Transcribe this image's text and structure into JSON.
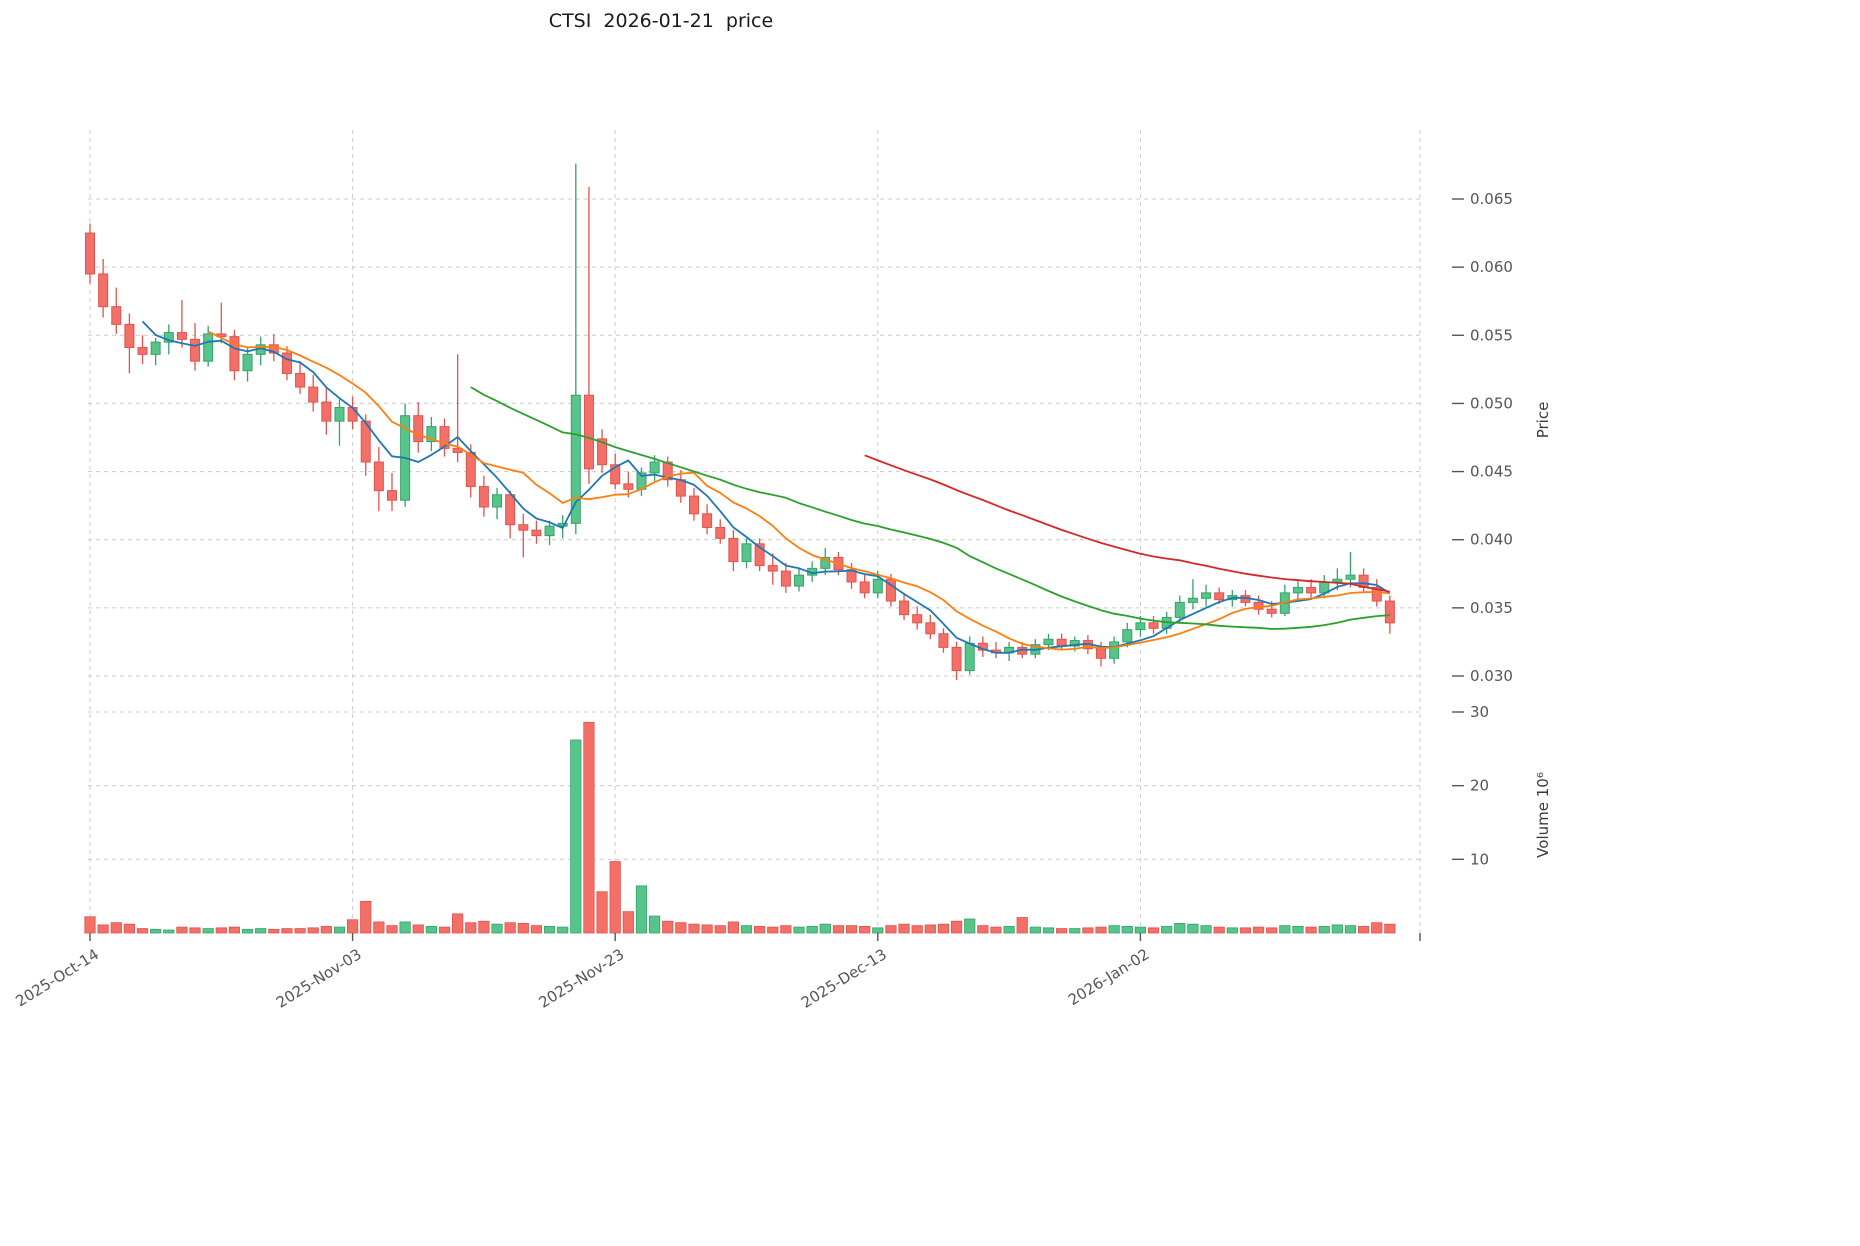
{
  "chart_data": {
    "type": "candlestick+volume",
    "title": "CTSI  2026-01-21  price",
    "symbol": "CTSI",
    "price_axis_label": "Price",
    "volume_axis_label": "Volume  10⁶",
    "price_ticks": [
      0.03,
      0.035,
      0.04,
      0.045,
      0.05,
      0.055,
      0.06,
      0.065
    ],
    "volume_ticks": [
      10,
      20,
      30
    ],
    "x_ticks": [
      {
        "index": 0,
        "label": "2025-Oct-14"
      },
      {
        "index": 20,
        "label": "2025-Nov-03"
      },
      {
        "index": 40,
        "label": "2025-Nov-23"
      },
      {
        "index": 60,
        "label": "2025-Dec-13"
      },
      {
        "index": 80,
        "label": "2026-Jan-02"
      }
    ],
    "moving_averages": [
      {
        "window": 5,
        "color": "#1f77b4"
      },
      {
        "window": 10,
        "color": "#ff7f0e"
      },
      {
        "window": 30,
        "color": "#2ca02c"
      },
      {
        "window": 60,
        "color": "#d62728"
      }
    ],
    "colors": {
      "up": "#57c48c",
      "up_edge": "#35a369",
      "down": "#f37069",
      "down_edge": "#e0534e",
      "grid": "#cccccc",
      "tick": "#555555",
      "title": "#1a1a1a"
    },
    "columns": [
      "date",
      "open",
      "high",
      "low",
      "close",
      "volume_millions"
    ],
    "candles": [
      [
        "2025-10-14",
        0.0625,
        0.0632,
        0.0588,
        0.0595,
        2.2
      ],
      [
        "2025-10-15",
        0.0595,
        0.0606,
        0.0563,
        0.0571,
        1.1
      ],
      [
        "2025-10-16",
        0.0571,
        0.0585,
        0.0551,
        0.0558,
        1.4
      ],
      [
        "2025-10-17",
        0.0558,
        0.0566,
        0.0522,
        0.0541,
        1.2
      ],
      [
        "2025-10-18",
        0.0541,
        0.055,
        0.0529,
        0.0536,
        0.6
      ],
      [
        "2025-10-19",
        0.0536,
        0.0548,
        0.0528,
        0.0545,
        0.5
      ],
      [
        "2025-10-20",
        0.0545,
        0.0558,
        0.0536,
        0.0552,
        0.4
      ],
      [
        "2025-10-21",
        0.0552,
        0.0576,
        0.0541,
        0.0547,
        0.8
      ],
      [
        "2025-10-22",
        0.0547,
        0.0559,
        0.0524,
        0.0531,
        0.7
      ],
      [
        "2025-10-23",
        0.0531,
        0.0557,
        0.0527,
        0.0551,
        0.6
      ],
      [
        "2025-10-24",
        0.0551,
        0.0574,
        0.0544,
        0.0549,
        0.7
      ],
      [
        "2025-10-25",
        0.0549,
        0.0554,
        0.0517,
        0.0524,
        0.8
      ],
      [
        "2025-10-26",
        0.0524,
        0.0541,
        0.0516,
        0.0536,
        0.5
      ],
      [
        "2025-10-27",
        0.0536,
        0.0549,
        0.0528,
        0.0543,
        0.6
      ],
      [
        "2025-10-28",
        0.0543,
        0.0551,
        0.0531,
        0.0537,
        0.5
      ],
      [
        "2025-10-29",
        0.0537,
        0.0542,
        0.0517,
        0.0522,
        0.6
      ],
      [
        "2025-10-30",
        0.0522,
        0.0531,
        0.0507,
        0.0512,
        0.6
      ],
      [
        "2025-10-31",
        0.0512,
        0.0521,
        0.0494,
        0.0501,
        0.7
      ],
      [
        "2025-11-01",
        0.0501,
        0.0512,
        0.0477,
        0.0487,
        0.9
      ],
      [
        "2025-11-02",
        0.0487,
        0.0503,
        0.0469,
        0.0497,
        0.8
      ],
      [
        "2025-11-03",
        0.0497,
        0.0505,
        0.0481,
        0.0487,
        1.8
      ],
      [
        "2025-11-04",
        0.0487,
        0.0492,
        0.0447,
        0.0457,
        4.3
      ],
      [
        "2025-11-05",
        0.0457,
        0.0468,
        0.0421,
        0.0436,
        1.5
      ],
      [
        "2025-11-06",
        0.0436,
        0.0449,
        0.0421,
        0.0429,
        1.0
      ],
      [
        "2025-11-07",
        0.0429,
        0.05,
        0.0424,
        0.0491,
        1.5
      ],
      [
        "2025-11-08",
        0.0491,
        0.0501,
        0.0464,
        0.0472,
        1.1
      ],
      [
        "2025-11-09",
        0.0472,
        0.049,
        0.0465,
        0.0483,
        0.9
      ],
      [
        "2025-11-10",
        0.0483,
        0.0489,
        0.0461,
        0.0467,
        0.8
      ],
      [
        "2025-11-11",
        0.0467,
        0.0536,
        0.0457,
        0.0464,
        2.6
      ],
      [
        "2025-11-12",
        0.0464,
        0.047,
        0.0431,
        0.0439,
        1.4
      ],
      [
        "2025-11-13",
        0.0439,
        0.0447,
        0.0417,
        0.0424,
        1.6
      ],
      [
        "2025-11-14",
        0.0424,
        0.0438,
        0.0415,
        0.0433,
        1.2
      ],
      [
        "2025-11-15",
        0.0433,
        0.0436,
        0.0401,
        0.0411,
        1.4
      ],
      [
        "2025-11-16",
        0.0411,
        0.0419,
        0.0387,
        0.0407,
        1.3
      ],
      [
        "2025-11-17",
        0.0407,
        0.0414,
        0.0397,
        0.0403,
        1.0
      ],
      [
        "2025-11-18",
        0.0403,
        0.0414,
        0.0396,
        0.041,
        0.9
      ],
      [
        "2025-11-19",
        0.041,
        0.0418,
        0.0401,
        0.0412,
        0.8
      ],
      [
        "2025-11-20",
        0.0412,
        0.0676,
        0.0404,
        0.0506,
        26.2
      ],
      [
        "2025-11-21",
        0.0506,
        0.0659,
        0.0441,
        0.0452,
        28.6
      ],
      [
        "2025-11-22",
        0.0474,
        0.0481,
        0.0449,
        0.0455,
        5.6
      ],
      [
        "2025-11-23",
        0.0455,
        0.0463,
        0.0437,
        0.0441,
        9.7
      ],
      [
        "2025-11-24",
        0.0441,
        0.045,
        0.0431,
        0.0437,
        2.9
      ],
      [
        "2025-11-25",
        0.0437,
        0.0453,
        0.0432,
        0.0449,
        6.4
      ],
      [
        "2025-11-26",
        0.0449,
        0.0462,
        0.0443,
        0.0457,
        2.3
      ],
      [
        "2025-11-27",
        0.0457,
        0.0461,
        0.0439,
        0.0444,
        1.6
      ],
      [
        "2025-11-28",
        0.0444,
        0.0451,
        0.0427,
        0.0432,
        1.4
      ],
      [
        "2025-11-29",
        0.0432,
        0.0438,
        0.0414,
        0.0419,
        1.2
      ],
      [
        "2025-11-30",
        0.0419,
        0.0426,
        0.0404,
        0.0409,
        1.1
      ],
      [
        "2025-12-01",
        0.0409,
        0.0415,
        0.0397,
        0.0401,
        1.0
      ],
      [
        "2025-12-02",
        0.0401,
        0.0407,
        0.0377,
        0.0384,
        1.5
      ],
      [
        "2025-12-03",
        0.0384,
        0.0401,
        0.0379,
        0.0397,
        1.0
      ],
      [
        "2025-12-04",
        0.0397,
        0.0401,
        0.0377,
        0.0381,
        0.9
      ],
      [
        "2025-12-05",
        0.0381,
        0.039,
        0.0367,
        0.0377,
        0.8
      ],
      [
        "2025-12-06",
        0.0377,
        0.0383,
        0.0361,
        0.0366,
        1.0
      ],
      [
        "2025-12-07",
        0.0366,
        0.0379,
        0.0362,
        0.0374,
        0.8
      ],
      [
        "2025-12-08",
        0.0374,
        0.0384,
        0.0369,
        0.0379,
        0.9
      ],
      [
        "2025-12-09",
        0.0379,
        0.0394,
        0.0374,
        0.0387,
        1.2
      ],
      [
        "2025-12-10",
        0.0387,
        0.0391,
        0.0374,
        0.0378,
        1.0
      ],
      [
        "2025-12-11",
        0.0378,
        0.0383,
        0.0364,
        0.0369,
        1.0
      ],
      [
        "2025-12-12",
        0.0369,
        0.0375,
        0.0357,
        0.0361,
        0.9
      ],
      [
        "2025-12-13",
        0.0361,
        0.0377,
        0.0357,
        0.0371,
        0.7
      ],
      [
        "2025-12-14",
        0.0371,
        0.0375,
        0.0351,
        0.0355,
        1.0
      ],
      [
        "2025-12-15",
        0.0355,
        0.0361,
        0.0341,
        0.0345,
        1.2
      ],
      [
        "2025-12-16",
        0.0345,
        0.0351,
        0.0334,
        0.0339,
        1.0
      ],
      [
        "2025-12-17",
        0.0339,
        0.0345,
        0.0327,
        0.0331,
        1.1
      ],
      [
        "2025-12-18",
        0.0331,
        0.0335,
        0.0317,
        0.0321,
        1.2
      ],
      [
        "2025-12-19",
        0.0321,
        0.0325,
        0.0297,
        0.0304,
        1.6
      ],
      [
        "2025-12-20",
        0.0304,
        0.0329,
        0.0301,
        0.0324,
        1.9
      ],
      [
        "2025-12-21",
        0.0324,
        0.0329,
        0.0314,
        0.0319,
        1.0
      ],
      [
        "2025-12-22",
        0.0319,
        0.0325,
        0.0313,
        0.0317,
        0.8
      ],
      [
        "2025-12-23",
        0.0317,
        0.0325,
        0.0311,
        0.0321,
        0.9
      ],
      [
        "2025-12-24",
        0.0321,
        0.0325,
        0.0313,
        0.0316,
        2.1
      ],
      [
        "2025-12-25",
        0.0316,
        0.0327,
        0.0313,
        0.0323,
        0.8
      ],
      [
        "2025-12-26",
        0.0323,
        0.0331,
        0.0319,
        0.0327,
        0.7
      ],
      [
        "2025-12-27",
        0.0327,
        0.0331,
        0.0319,
        0.0322,
        0.6
      ],
      [
        "2025-12-28",
        0.0322,
        0.0329,
        0.0318,
        0.0326,
        0.6
      ],
      [
        "2025-12-29",
        0.0326,
        0.033,
        0.0316,
        0.032,
        0.7
      ],
      [
        "2025-12-30",
        0.032,
        0.0325,
        0.0307,
        0.0313,
        0.8
      ],
      [
        "2025-12-31",
        0.0313,
        0.0329,
        0.0309,
        0.0325,
        1.0
      ],
      [
        "2026-01-01",
        0.0325,
        0.0339,
        0.0321,
        0.0334,
        0.9
      ],
      [
        "2026-01-02",
        0.0334,
        0.0344,
        0.0329,
        0.0339,
        0.8
      ],
      [
        "2026-01-03",
        0.0339,
        0.0344,
        0.0331,
        0.0335,
        0.7
      ],
      [
        "2026-01-04",
        0.0335,
        0.0347,
        0.0331,
        0.0343,
        0.9
      ],
      [
        "2026-01-05",
        0.0343,
        0.0359,
        0.0339,
        0.0354,
        1.3
      ],
      [
        "2026-01-06",
        0.0354,
        0.0371,
        0.0349,
        0.0357,
        1.2
      ],
      [
        "2026-01-07",
        0.0357,
        0.0367,
        0.0351,
        0.0361,
        1.0
      ],
      [
        "2026-01-08",
        0.0361,
        0.0365,
        0.0353,
        0.0356,
        0.8
      ],
      [
        "2026-01-09",
        0.0356,
        0.0363,
        0.0351,
        0.0359,
        0.7
      ],
      [
        "2026-01-10",
        0.0359,
        0.0363,
        0.0351,
        0.0354,
        0.7
      ],
      [
        "2026-01-11",
        0.0354,
        0.0359,
        0.0345,
        0.0349,
        0.8
      ],
      [
        "2026-01-12",
        0.0349,
        0.0355,
        0.0343,
        0.0346,
        0.7
      ],
      [
        "2026-01-13",
        0.0346,
        0.0367,
        0.0344,
        0.0361,
        1.0
      ],
      [
        "2026-01-14",
        0.0361,
        0.0371,
        0.0355,
        0.0365,
        0.9
      ],
      [
        "2026-01-15",
        0.0365,
        0.0371,
        0.0357,
        0.0361,
        0.8
      ],
      [
        "2026-01-16",
        0.0361,
        0.0374,
        0.0357,
        0.0369,
        0.9
      ],
      [
        "2026-01-17",
        0.0369,
        0.0379,
        0.0363,
        0.0371,
        1.1
      ],
      [
        "2026-01-18",
        0.0371,
        0.0391,
        0.0365,
        0.0374,
        1.0
      ],
      [
        "2026-01-19",
        0.0374,
        0.0379,
        0.0361,
        0.0365,
        0.9
      ],
      [
        "2026-01-20",
        0.0365,
        0.0371,
        0.0351,
        0.0355,
        1.4
      ],
      [
        "2026-01-21",
        0.0355,
        0.0359,
        0.0331,
        0.0339,
        1.2
      ]
    ]
  }
}
